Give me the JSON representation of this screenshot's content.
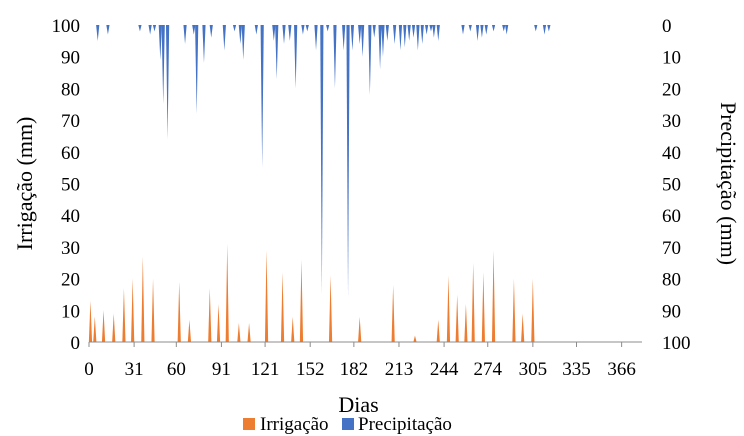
{
  "chart_data": {
    "type": "area",
    "xlabel": "Dias",
    "ylabel": "Irrigação (mm)",
    "y2label": "Precipitação (mm)",
    "xlim": [
      0,
      380
    ],
    "ylim": [
      0,
      100
    ],
    "y2lim": [
      0,
      100
    ],
    "y2_inverted": true,
    "xticks": [
      "0",
      "31",
      "60",
      "91",
      "121",
      "152",
      "182",
      "213",
      "244",
      "274",
      "305",
      "335",
      "366"
    ],
    "yticks": [
      "0",
      "10",
      "20",
      "30",
      "40",
      "50",
      "60",
      "70",
      "80",
      "90",
      "100"
    ],
    "y2ticks": [
      "0",
      "10",
      "20",
      "30",
      "40",
      "50",
      "60",
      "70",
      "80",
      "90",
      "100"
    ],
    "grid": false,
    "legend": "bottom",
    "series": [
      {
        "name": "Irrigação",
        "color": "#ED7D31",
        "axis": "left",
        "points": [
          [
            1,
            13
          ],
          [
            4,
            8
          ],
          [
            10,
            10
          ],
          [
            17,
            9
          ],
          [
            24,
            17
          ],
          [
            30,
            20
          ],
          [
            37,
            27
          ],
          [
            44,
            20
          ],
          [
            62,
            19
          ],
          [
            69,
            7
          ],
          [
            83,
            17
          ],
          [
            89,
            12
          ],
          [
            95,
            31
          ],
          [
            103,
            6
          ],
          [
            110,
            6
          ],
          [
            122,
            29
          ],
          [
            133,
            22
          ],
          [
            140,
            8
          ],
          [
            146,
            26
          ],
          [
            166,
            21
          ],
          [
            186,
            8
          ],
          [
            209,
            18
          ],
          [
            224,
            2
          ],
          [
            240,
            7
          ],
          [
            247,
            21
          ],
          [
            253,
            15
          ],
          [
            259,
            12
          ],
          [
            264,
            25
          ],
          [
            271,
            22
          ],
          [
            278,
            29
          ],
          [
            292,
            20
          ],
          [
            298,
            9
          ],
          [
            305,
            20
          ]
        ]
      },
      {
        "name": "Precipitação",
        "color": "#4472C4",
        "axis": "right",
        "points": [
          [
            6,
            5
          ],
          [
            13,
            3
          ],
          [
            35,
            2
          ],
          [
            42,
            3
          ],
          [
            45,
            2
          ],
          [
            49,
            11
          ],
          [
            51,
            25
          ],
          [
            54,
            36
          ],
          [
            66,
            6
          ],
          [
            72,
            3
          ],
          [
            74,
            28
          ],
          [
            79,
            12
          ],
          [
            84,
            4
          ],
          [
            93,
            8
          ],
          [
            100,
            2
          ],
          [
            104,
            6
          ],
          [
            106,
            11
          ],
          [
            115,
            3
          ],
          [
            119,
            45
          ],
          [
            127,
            5
          ],
          [
            129,
            17
          ],
          [
            134,
            6
          ],
          [
            138,
            5
          ],
          [
            142,
            20
          ],
          [
            147,
            3
          ],
          [
            150,
            2
          ],
          [
            156,
            8
          ],
          [
            160,
            85
          ],
          [
            164,
            2
          ],
          [
            169,
            20
          ],
          [
            175,
            8
          ],
          [
            178,
            86
          ],
          [
            181,
            8
          ],
          [
            186,
            6
          ],
          [
            188,
            10
          ],
          [
            193,
            22
          ],
          [
            196,
            4
          ],
          [
            200,
            14
          ],
          [
            202,
            10
          ],
          [
            205,
            5
          ],
          [
            210,
            6
          ],
          [
            214,
            8
          ],
          [
            217,
            7
          ],
          [
            220,
            5
          ],
          [
            223,
            4
          ],
          [
            226,
            8
          ],
          [
            229,
            6
          ],
          [
            232,
            3
          ],
          [
            235,
            2
          ],
          [
            237,
            4
          ],
          [
            240,
            5
          ],
          [
            257,
            3
          ],
          [
            262,
            2
          ],
          [
            267,
            5
          ],
          [
            270,
            4
          ],
          [
            273,
            3
          ],
          [
            278,
            2
          ],
          [
            285,
            2
          ],
          [
            287,
            3
          ],
          [
            307,
            2
          ],
          [
            313,
            3
          ],
          [
            316,
            2
          ]
        ]
      }
    ]
  }
}
